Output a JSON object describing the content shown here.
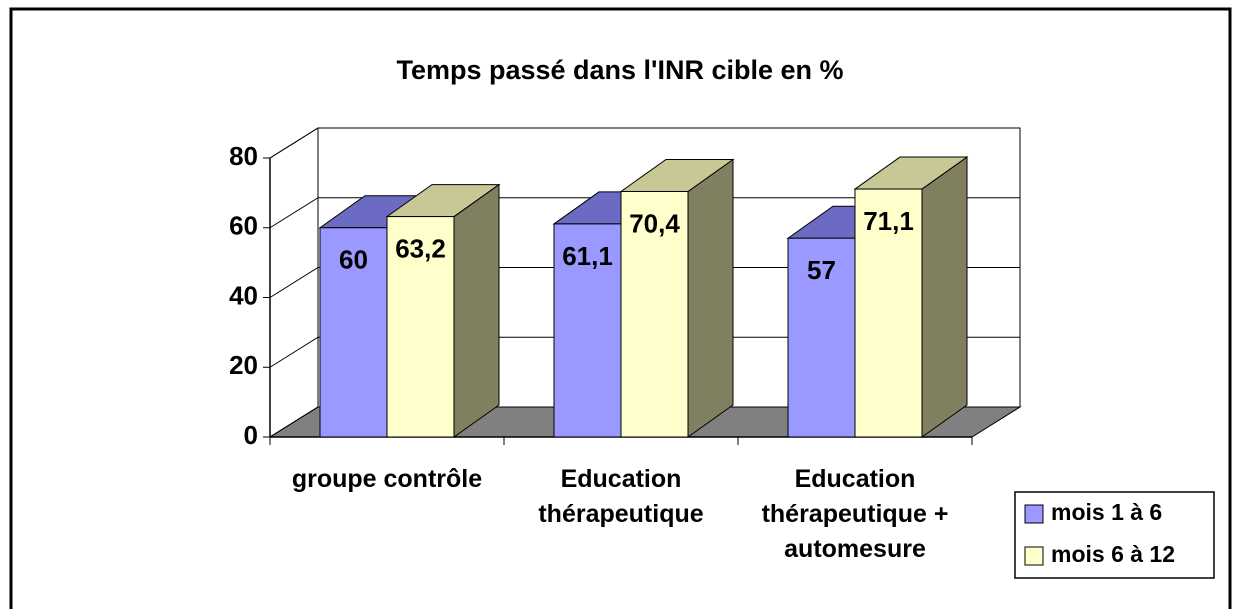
{
  "chart_data": {
    "type": "bar3d",
    "title": "Temps passé dans l'INR cible en %",
    "categories": [
      "groupe contrôle",
      "Education thérapeutique",
      "Education thérapeutique + automesure"
    ],
    "series": [
      {
        "name": "mois 1 à 6",
        "color": "#9999ff",
        "values": [
          60,
          61.1,
          57
        ],
        "value_labels": [
          "60",
          "61,1",
          "57"
        ]
      },
      {
        "name": "mois 6 à 12",
        "color": "#ffffcc",
        "values": [
          63.2,
          70.4,
          71.1
        ],
        "value_labels": [
          "63,2",
          "70,4",
          "71,1"
        ]
      }
    ],
    "ylim": [
      0,
      80
    ],
    "yticks": [
      0,
      20,
      40,
      60,
      80
    ],
    "grid": true,
    "legend": "bottom-right"
  }
}
